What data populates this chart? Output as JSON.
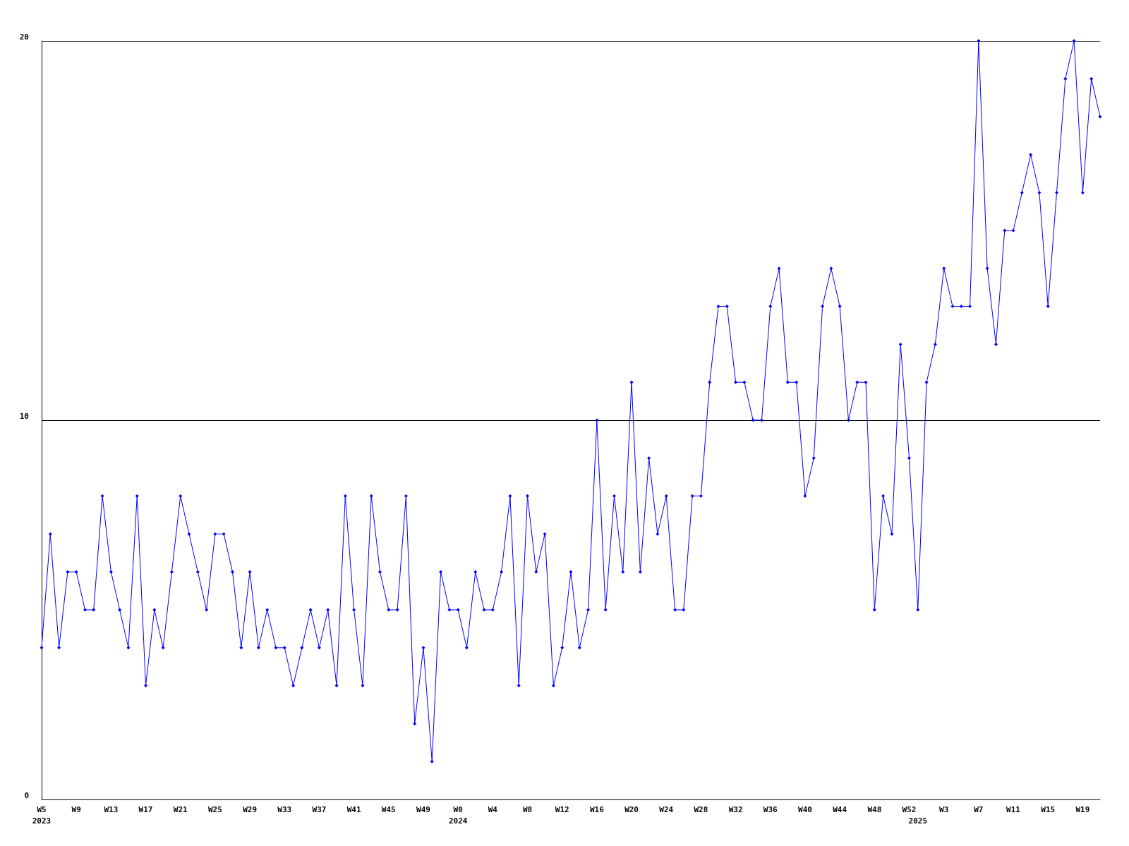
{
  "chart_data": {
    "type": "line",
    "categories": [
      "W5\n2023",
      null,
      null,
      null,
      "W9",
      null,
      null,
      null,
      "W13",
      null,
      null,
      null,
      "W17",
      null,
      null,
      null,
      "W21",
      null,
      null,
      null,
      "W25",
      null,
      null,
      null,
      "W29",
      null,
      null,
      null,
      "W33",
      null,
      null,
      null,
      "W37",
      null,
      null,
      null,
      "W41",
      null,
      null,
      null,
      "W45",
      null,
      null,
      null,
      "W49",
      null,
      null,
      null,
      "W0\n2024",
      null,
      null,
      null,
      "W4",
      null,
      null,
      null,
      "W8",
      null,
      null,
      null,
      "W12",
      null,
      null,
      null,
      "W16",
      null,
      null,
      null,
      "W20",
      null,
      null,
      null,
      "W24",
      null,
      null,
      null,
      "W28",
      null,
      null,
      null,
      "W32",
      null,
      null,
      null,
      "W36",
      null,
      null,
      null,
      "W40",
      null,
      null,
      null,
      "W44",
      null,
      null,
      null,
      "W48",
      null,
      null,
      null,
      "W52",
      "\n2025",
      null,
      null,
      "W3",
      null,
      null,
      null,
      "W7",
      null,
      null,
      null,
      "W11",
      null,
      null,
      null,
      "W15",
      null,
      null,
      null,
      "W19",
      null,
      null
    ],
    "series": [
      {
        "color": "#0000ff",
        "values": [
          4,
          7,
          4,
          6,
          6,
          5,
          5,
          8,
          6,
          5,
          4,
          8,
          3,
          5,
          4,
          6,
          8,
          7,
          6,
          5,
          7,
          7,
          6,
          4,
          6,
          4,
          5,
          4,
          4,
          3,
          4,
          5,
          4,
          5,
          3,
          8,
          5,
          3,
          8,
          6,
          5,
          5,
          8,
          2,
          4,
          1,
          6,
          5,
          5,
          4,
          6,
          5,
          5,
          6,
          8,
          3,
          8,
          6,
          7,
          3,
          4,
          6,
          4,
          5,
          10,
          5,
          8,
          6,
          11,
          6,
          9,
          7,
          8,
          5,
          5,
          8,
          8,
          11,
          13,
          13,
          11,
          11,
          10,
          10,
          13,
          14,
          11,
          11,
          8,
          9,
          13,
          14,
          13,
          10,
          11,
          11,
          5,
          8,
          7,
          12,
          9,
          5,
          11,
          12,
          14,
          13,
          13,
          13,
          20,
          14,
          12,
          15,
          15,
          16,
          17,
          16,
          13,
          16,
          19,
          20,
          16,
          19,
          18
        ]
      }
    ],
    "ylim": [
      0,
      20
    ],
    "yticks": [
      0,
      10,
      20
    ],
    "grid": "y",
    "marker": "diamond",
    "line_style": "solid"
  }
}
